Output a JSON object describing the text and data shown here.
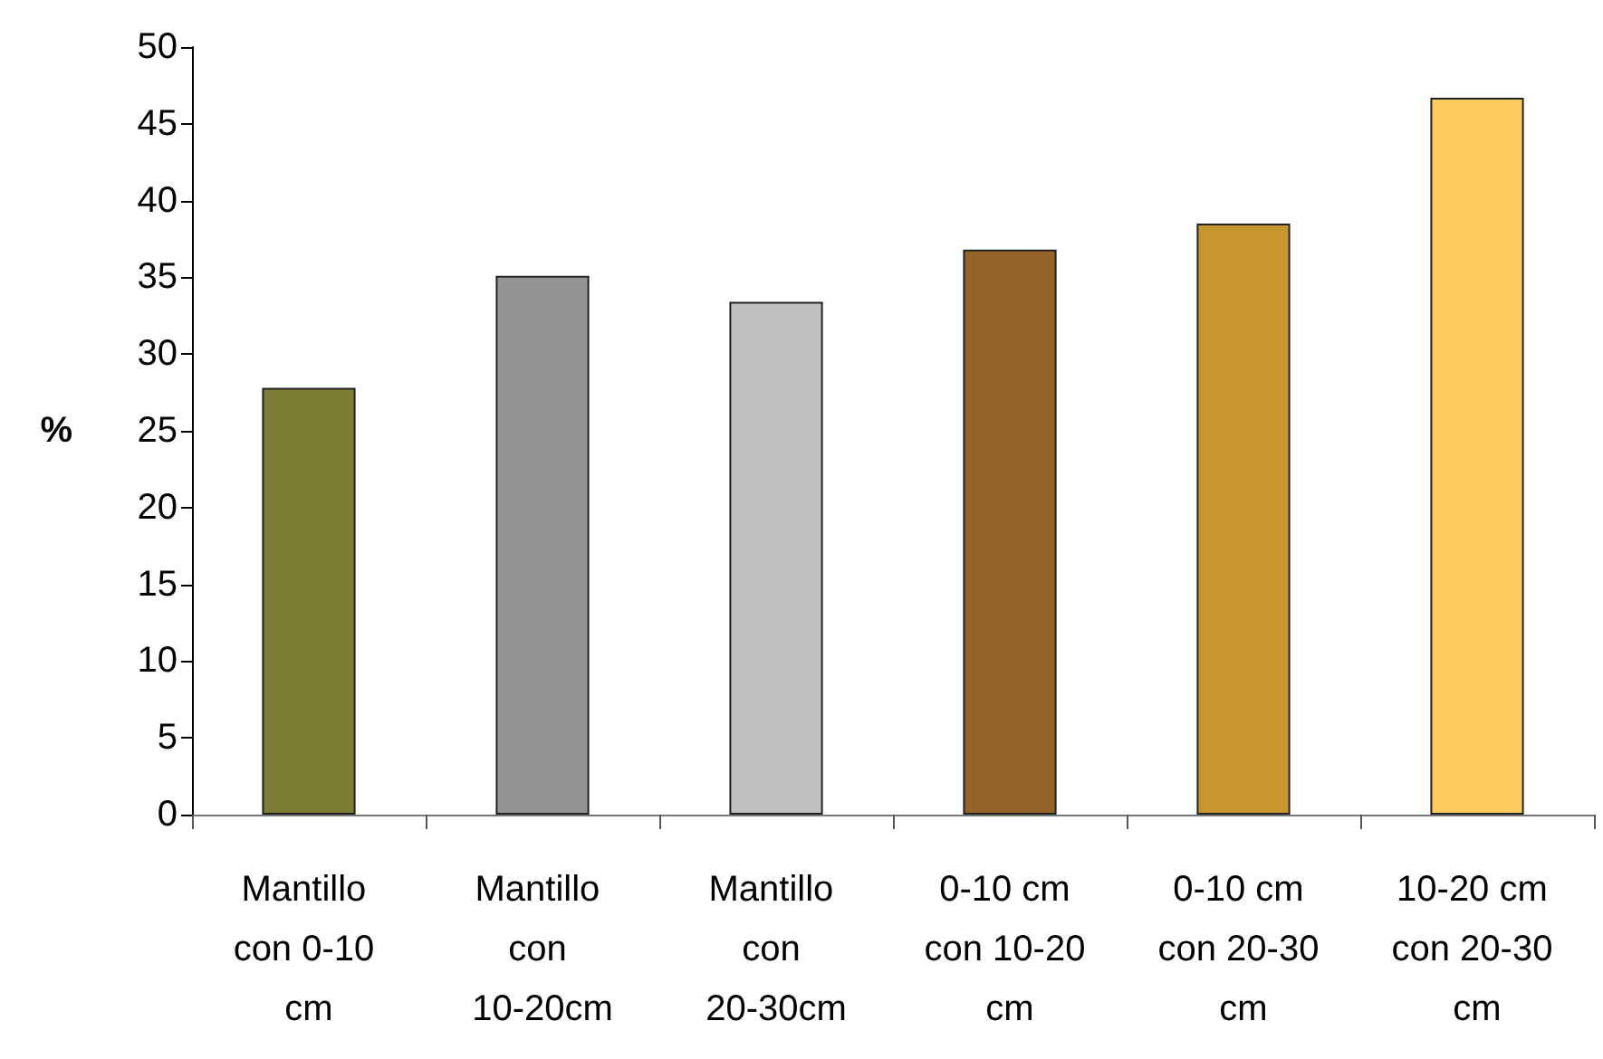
{
  "chart_data": {
    "type": "bar",
    "ylabel": "%",
    "categories": [
      "Mantillo con 0-10 cm",
      "Mantillo con 10-20cm",
      "Mantillo con 20-30cm",
      "0-10 cm con 10-20 cm",
      "0-10 cm con 20-30 cm",
      "10-20 cm con 20-30 cm"
    ],
    "values": [
      27.8,
      35.1,
      33.4,
      36.8,
      38.5,
      46.7
    ],
    "colors": [
      "#7d7d36",
      "#949494",
      "#c0c0c0",
      "#956327",
      "#c7962f",
      "#fecb5e"
    ],
    "ylim": [
      0,
      50
    ],
    "yticks": [
      0,
      5,
      10,
      15,
      20,
      25,
      30,
      35,
      40,
      45,
      50
    ],
    "grid": false
  }
}
